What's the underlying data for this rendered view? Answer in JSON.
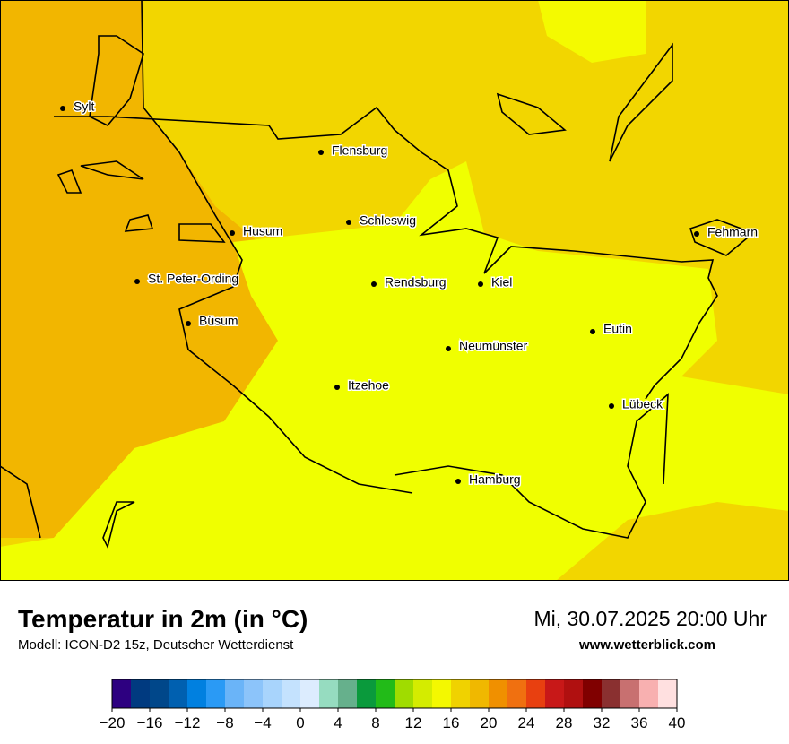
{
  "header": {
    "title": "Temperatur in 2m (in °C)",
    "subtitle": "Modell: ICON-D2 15z, Deutscher Wetterdienst",
    "datetime": "Mi, 30.07.2025 20:00 Uhr",
    "website": "www.wetterblick.com"
  },
  "cities": [
    "Sylt",
    "Flensburg",
    "Schleswig",
    "Husum",
    "Fehmarn",
    "St. Peter-Ording",
    "Rendsburg",
    "Kiel",
    "Büsum",
    "Eutin",
    "Neumünster",
    "Itzehoe",
    "Lübeck",
    "Hamburg"
  ],
  "colorbar": {
    "range": [
      -20,
      40
    ],
    "colors": [
      "#2d0080",
      "#003a80",
      "#00478a",
      "#0060b0",
      "#0080e0",
      "#2a9af5",
      "#6ab4f8",
      "#8cc4fa",
      "#a8d4fc",
      "#c4e2fe",
      "#dcecfe",
      "#96dcc0",
      "#66b08c",
      "#0a9a3c",
      "#22bb18",
      "#a0dc00",
      "#d4ec00",
      "#f4f800",
      "#f0d200",
      "#f0b800",
      "#f09000",
      "#f07010",
      "#e84010",
      "#c81818",
      "#b01010",
      "#800000",
      "#8a3030",
      "#c87070",
      "#f8b0b0",
      "#ffe0e0"
    ],
    "ticks": [
      {
        "value": -20,
        "label": "−20"
      },
      {
        "value": -16,
        "label": "−16"
      },
      {
        "value": -12,
        "label": "−12"
      },
      {
        "value": -8,
        "label": "−8"
      },
      {
        "value": -4,
        "label": "−4"
      },
      0,
      4,
      8,
      12,
      16,
      20,
      24,
      28,
      32,
      36,
      40
    ]
  }
}
